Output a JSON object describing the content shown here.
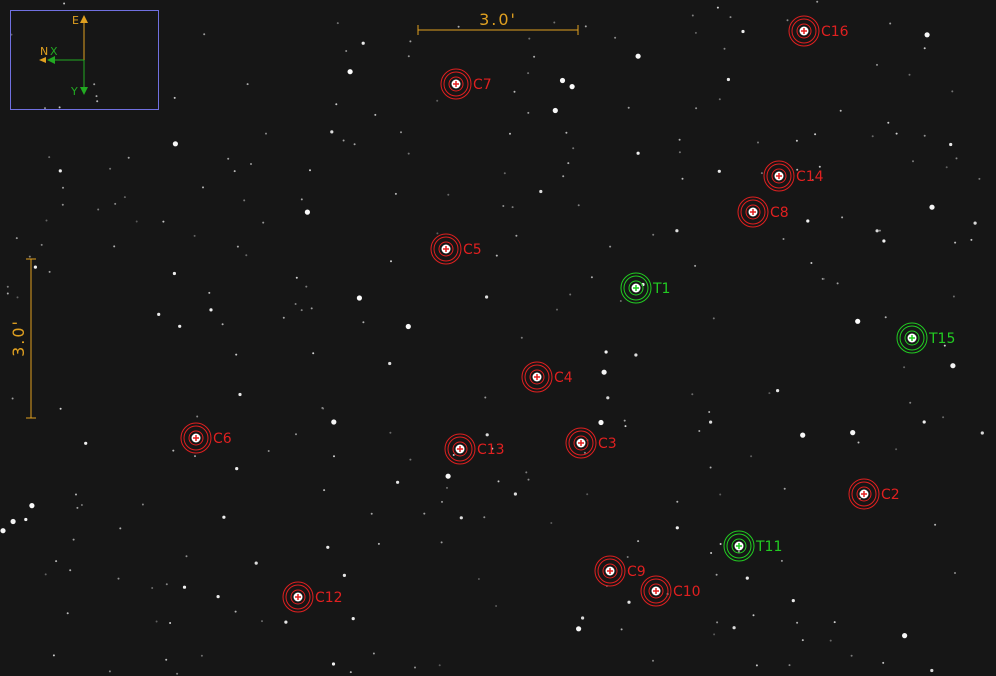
{
  "compass": {
    "east_label": "E",
    "north_label": "N",
    "x_label": "X",
    "y_label": "Y"
  },
  "scale_bars": {
    "horizontal_label": "3.0'",
    "vertical_label": "3.0'"
  },
  "colors": {
    "comparison": "#e02020",
    "target": "#22cc22",
    "scale": "#e0a020",
    "compass_box": "#7070e0",
    "axis": "#22aa22"
  },
  "apertures": [
    {
      "label": "C16",
      "type": "comparison"
    },
    {
      "label": "C7",
      "type": "comparison"
    },
    {
      "label": "C14",
      "type": "comparison"
    },
    {
      "label": "C8",
      "type": "comparison"
    },
    {
      "label": "C5",
      "type": "comparison"
    },
    {
      "label": "T1",
      "type": "target"
    },
    {
      "label": "T15",
      "type": "target"
    },
    {
      "label": "C4",
      "type": "comparison"
    },
    {
      "label": "C6",
      "type": "comparison"
    },
    {
      "label": "C13",
      "type": "comparison"
    },
    {
      "label": "C3",
      "type": "comparison"
    },
    {
      "label": "C2",
      "type": "comparison"
    },
    {
      "label": "T11",
      "type": "target"
    },
    {
      "label": "C9",
      "type": "comparison"
    },
    {
      "label": "C10",
      "type": "comparison"
    },
    {
      "label": "C12",
      "type": "comparison"
    }
  ]
}
